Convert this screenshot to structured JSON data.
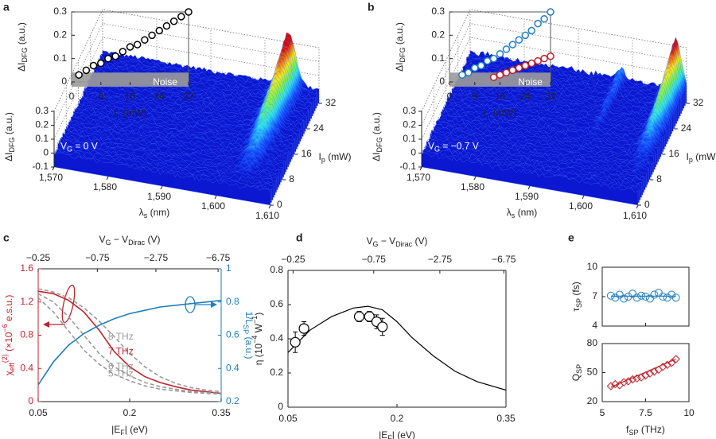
{
  "chart_data": [
    {
      "panel": "a",
      "type": "surface3d",
      "xlabel": [
        "λ",
        {
          "sub": "s"
        },
        " (nm)"
      ],
      "xlim": [
        1570,
        1610
      ],
      "xticks": [
        {
          "value": 1570,
          "label": "1,570"
        },
        {
          "value": 1580,
          "label": "1,580"
        },
        {
          "value": 1590,
          "label": "1,590"
        },
        {
          "value": 1600,
          "label": "1,600"
        },
        {
          "value": 1610,
          "label": "1,610"
        }
      ],
      "ylabel": [
        "I",
        {
          "sub": "p"
        },
        " (mW)"
      ],
      "ylim": [
        0,
        32
      ],
      "yticks": [
        0,
        8,
        16,
        24,
        32
      ],
      "zlabel": [
        "ΔI",
        {
          "sub": "DFG"
        },
        " (a.u.)"
      ],
      "zlim": [
        -0.1,
        0.3
      ],
      "zticks": [
        -0.1,
        0,
        0.1,
        0.2,
        0.3
      ],
      "annotation": [
        "V",
        {
          "sub": "G"
        },
        " = 0 V"
      ],
      "inset": {
        "type": "scatter",
        "xlim": [
          0,
          32
        ],
        "xticks": [
          0,
          8,
          16,
          24,
          32
        ],
        "ylim": [
          0,
          0.3
        ],
        "yticks": [
          0,
          0.1,
          0.2,
          0.3
        ],
        "xlabel": [
          "I",
          {
            "sub": "p"
          },
          " (mW)"
        ],
        "ylabel": [
          "ΔI",
          {
            "sub": "DFG"
          },
          " (a.u.)"
        ],
        "noise_label": "Noise",
        "noise_level": 0.04,
        "series": [
          {
            "color": "#000000",
            "fill": "#ffffff",
            "x": [
              2,
              4,
              6,
              8,
              10,
              12,
              14,
              16,
              18,
              20,
              22,
              24,
              26,
              28,
              30,
              32
            ],
            "values": [
              0.03,
              0.05,
              0.07,
              0.08,
              0.1,
              0.11,
              0.13,
              0.15,
              0.16,
              0.18,
              0.2,
              0.22,
              0.24,
              0.26,
              0.28,
              0.3
            ]
          }
        ]
      }
    },
    {
      "panel": "b",
      "type": "surface3d",
      "xlabel": [
        "λ",
        {
          "sub": "s"
        },
        " (nm)"
      ],
      "xlim": [
        1570,
        1610
      ],
      "xticks": [
        {
          "value": 1570,
          "label": "1,570"
        },
        {
          "value": 1580,
          "label": "1,580"
        },
        {
          "value": 1590,
          "label": "1,590"
        },
        {
          "value": 1600,
          "label": "1,600"
        },
        {
          "value": 1610,
          "label": "1,610"
        }
      ],
      "ylabel": [
        "I",
        {
          "sub": "p"
        },
        " (mW)"
      ],
      "ylim": [
        0,
        32
      ],
      "yticks": [
        0,
        8,
        16,
        24,
        32
      ],
      "zlabel": [
        "ΔI",
        {
          "sub": "DFG"
        },
        " (a.u.)"
      ],
      "zlim": [
        -0.1,
        0.3
      ],
      "zticks": [
        -0.1,
        0,
        0.1,
        0.2,
        0.3
      ],
      "annotation": [
        "V",
        {
          "sub": "G"
        },
        " = −0.7 V"
      ],
      "inset": {
        "type": "scatter",
        "xlim": [
          0,
          32
        ],
        "xticks": [
          0,
          8,
          16,
          24,
          32
        ],
        "ylim": [
          0,
          0.3
        ],
        "yticks": [
          0,
          0.1,
          0.2,
          0.3
        ],
        "xlabel": [
          "I",
          {
            "sub": "p"
          },
          " (mW)"
        ],
        "ylabel": [
          "ΔI",
          {
            "sub": "DFG"
          },
          " (a.u.)"
        ],
        "noise_label": "Noise",
        "noise_level": 0.04,
        "series": [
          {
            "color": "#1f7ec1",
            "fill": "#ffffff",
            "x": [
              4,
              6,
              8,
              10,
              12,
              14,
              16,
              18,
              20,
              22,
              24,
              26,
              28,
              30,
              32
            ],
            "values": [
              0.03,
              0.04,
              0.06,
              0.07,
              0.09,
              0.1,
              0.12,
              0.14,
              0.16,
              0.18,
              0.2,
              0.22,
              0.25,
              0.27,
              0.3
            ]
          },
          {
            "color": "#c0222b",
            "fill": "#ffffff",
            "x": [
              14,
              16,
              18,
              20,
              22,
              24,
              26,
              28,
              30,
              32
            ],
            "values": [
              0.02,
              0.03,
              0.04,
              0.05,
              0.06,
              0.07,
              0.08,
              0.09,
              0.1,
              0.11
            ]
          }
        ]
      }
    },
    {
      "panel": "c",
      "type": "line",
      "xlabel": [
        "|E",
        {
          "sub": "F"
        },
        "| (eV)"
      ],
      "xlim": [
        0.05,
        0.35
      ],
      "xticks": [
        0.05,
        0.2,
        0.35
      ],
      "x2label": [
        "V",
        {
          "sub": "G"
        },
        " − V",
        {
          "sub": "Dirac"
        },
        " (V)"
      ],
      "x2ticks": [
        {
          "value": 0.05,
          "label": "−0.25"
        },
        {
          "value": 0.147,
          "label": "−0.75"
        },
        {
          "value": 0.243,
          "label": "−2.75"
        },
        {
          "value": 0.345,
          "label": "−6.75"
        }
      ],
      "ylabel": [
        "χ",
        {
          "sub": "eff"
        },
        {
          "sup": "(2)"
        },
        " (×10",
        {
          "sup": "−6"
        },
        " e.s.u.)"
      ],
      "ylim": [
        0,
        1.6
      ],
      "yticks": [
        0,
        0.4,
        0.8,
        1.2,
        1.6
      ],
      "ycolor": "#c0222b",
      "y2label": [
        "1/L",
        {
          "sub": "SP"
        },
        " (a.u.)"
      ],
      "y2lim": [
        0.2,
        1
      ],
      "y2ticks": [
        0.2,
        0.4,
        0.6,
        0.8,
        1
      ],
      "y2color": "#1f7ec1",
      "x": [
        0.05,
        0.075,
        0.1,
        0.125,
        0.15,
        0.175,
        0.2,
        0.225,
        0.25,
        0.275,
        0.3,
        0.325,
        0.35
      ],
      "series": [
        {
          "name": "8 THz",
          "color": "#9a9a9a",
          "dashed": true,
          "values": [
            1.36,
            1.32,
            1.25,
            1.13,
            0.97,
            0.78,
            0.58,
            0.42,
            0.3,
            0.22,
            0.17,
            0.14,
            0.12
          ]
        },
        {
          "name": "7 THz",
          "color": "#c0222b",
          "values": [
            1.33,
            1.3,
            1.22,
            1.08,
            0.86,
            0.6,
            0.42,
            0.3,
            0.23,
            0.18,
            0.14,
            0.12,
            0.1
          ]
        },
        {
          "name": "6 THz",
          "color": "#9a9a9a",
          "dashed": true,
          "values": [
            1.3,
            1.2,
            1.02,
            0.8,
            0.58,
            0.42,
            0.31,
            0.23,
            0.18,
            0.15,
            0.12,
            0.11,
            0.1
          ]
        },
        {
          "name": "5 THz",
          "color": "#9a9a9a",
          "dashed": true,
          "values": [
            1.25,
            1.08,
            0.85,
            0.62,
            0.45,
            0.33,
            0.25,
            0.19,
            0.15,
            0.13,
            0.11,
            0.1,
            0.09
          ]
        },
        {
          "color": "#1f7ec1",
          "axis": "y2",
          "values": [
            0.3,
            0.44,
            0.54,
            0.61,
            0.66,
            0.7,
            0.73,
            0.75,
            0.77,
            0.78,
            0.79,
            0.8,
            0.81
          ]
        }
      ]
    },
    {
      "panel": "d",
      "type": "line",
      "xlabel": [
        "|E",
        {
          "sub": "F"
        },
        "| (eV)"
      ],
      "xlim": [
        0.05,
        0.35
      ],
      "xticks": [
        0.05,
        0.2,
        0.35
      ],
      "x2label": [
        "V",
        {
          "sub": "G"
        },
        " − V",
        {
          "sub": "Dirac"
        },
        " (V)"
      ],
      "x2ticks": [
        {
          "value": 0.057,
          "label": "−0.25"
        },
        {
          "value": 0.168,
          "label": "−0.75"
        },
        {
          "value": 0.259,
          "label": "−2.75"
        },
        {
          "value": 0.347,
          "label": "−6.75"
        }
      ],
      "ylabel": [
        "η (10",
        {
          "sup": "−4"
        },
        " W",
        {
          "sup": "−1"
        },
        ")"
      ],
      "ylim": [
        0,
        0.8
      ],
      "yticks": [
        0,
        0.2,
        0.4,
        0.6,
        0.8
      ],
      "line": {
        "color": "#000000",
        "x": [
          0.05,
          0.08,
          0.11,
          0.14,
          0.16,
          0.18,
          0.2,
          0.22,
          0.25,
          0.28,
          0.31,
          0.35
        ],
        "values": [
          0.32,
          0.45,
          0.53,
          0.58,
          0.59,
          0.57,
          0.5,
          0.41,
          0.3,
          0.21,
          0.15,
          0.1
        ]
      },
      "points": {
        "x": [
          0.06,
          0.072,
          0.148,
          0.162,
          0.172,
          0.18
        ],
        "values": [
          0.38,
          0.46,
          0.53,
          0.53,
          0.5,
          0.47
        ],
        "errors": [
          0.06,
          0.04,
          0.03,
          0.03,
          0.04,
          0.05
        ]
      }
    },
    {
      "panel": "e",
      "type": "scatter",
      "xlabel": [
        "f",
        {
          "sub": "SP"
        },
        " (THz)"
      ],
      "xlim": [
        5,
        10
      ],
      "xticks": [
        5,
        7.5,
        10
      ],
      "x": [
        5.5,
        5.75,
        6,
        6.25,
        6.5,
        6.75,
        7,
        7.25,
        7.5,
        7.75,
        8,
        8.25,
        8.5,
        8.75,
        9,
        9.25
      ],
      "plots": [
        {
          "ylabel": [
            "τ",
            {
              "sub": "SP"
            },
            " (fs)"
          ],
          "ylim": [
            4,
            10
          ],
          "yticks": [
            4,
            7,
            10
          ],
          "color": "#1f7ec1",
          "marker": "circle",
          "values": [
            7.1,
            6.9,
            7.2,
            6.8,
            7.0,
            7.3,
            6.9,
            7.1,
            7.0,
            6.8,
            7.2,
            7.4,
            7.0,
            6.9,
            7.2,
            6.9
          ],
          "line": {
            "x": [
              5.5,
              9.25
            ],
            "values": [
              7.05,
              7.05
            ]
          }
        },
        {
          "ylabel": [
            "Q",
            {
              "sub": "SP"
            }
          ],
          "ylim": [
            20,
            80
          ],
          "yticks": [
            20,
            50,
            80
          ],
          "color": "#c0222b",
          "marker": "diamond",
          "values": [
            36,
            38,
            37,
            40,
            41,
            43,
            44,
            45,
            47,
            49,
            51,
            53,
            56,
            58,
            60,
            64
          ],
          "line": {
            "x": [
              5.5,
              9.25
            ],
            "values": [
              35,
              64
            ]
          }
        }
      ]
    }
  ]
}
